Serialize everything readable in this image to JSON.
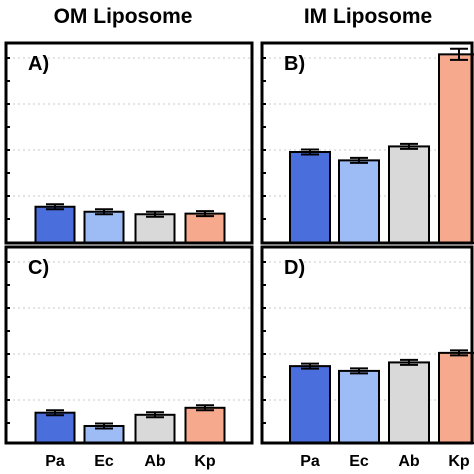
{
  "columns": [
    "OM Liposome",
    "IM Liposome"
  ],
  "colors": {
    "Pa": "#4a6fdc",
    "Ec": "#9dbcf6",
    "Ab": "#d9d9d9",
    "Kp": "#f6a98c"
  },
  "chart_data": [
    {
      "type": "bar",
      "panel": "A)",
      "column": "OM Liposome",
      "categories": [
        "Pa",
        "Ec",
        "Ab",
        "Kp"
      ],
      "values": [
        5.8,
        5.0,
        4.6,
        4.7
      ],
      "errors": [
        0.15,
        0.15,
        0.15,
        0.15
      ],
      "ylim": [
        0,
        20
      ],
      "grid": true
    },
    {
      "type": "bar",
      "panel": "B)",
      "column": "IM Liposome",
      "categories": [
        "Pa",
        "Ec",
        "Ab",
        "Kp"
      ],
      "values": [
        10.0,
        9.1,
        10.6,
        20.5
      ],
      "errors": [
        0.15,
        0.15,
        0.15,
        0.6
      ],
      "ylim": [
        0,
        20
      ],
      "grid": true
    },
    {
      "type": "bar",
      "panel": "C)",
      "column": "OM Liposome",
      "categories": [
        "Pa",
        "Ec",
        "Ab",
        "Kp"
      ],
      "values": [
        6.9,
        5.0,
        6.6,
        7.6
      ],
      "errors": [
        0.15,
        0.15,
        0.15,
        0.15
      ],
      "ylim": [
        0,
        40
      ],
      "grid": true
    },
    {
      "type": "bar",
      "panel": "D)",
      "column": "IM Liposome",
      "categories": [
        "Pa",
        "Ec",
        "Ab",
        "Kp"
      ],
      "values": [
        17.9,
        17.0,
        18.6,
        20.4
      ],
      "errors": [
        0.3,
        0.3,
        0.3,
        0.3
      ],
      "ylim": [
        0,
        40
      ],
      "grid": true
    }
  ]
}
